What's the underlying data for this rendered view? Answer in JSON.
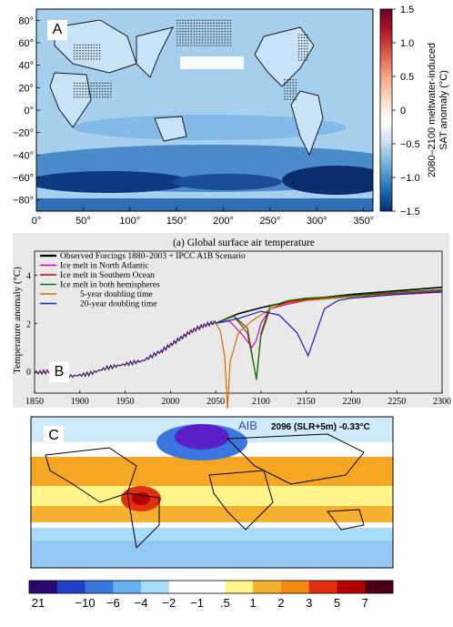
{
  "chart_data": [
    {
      "panel": "A",
      "type": "heatmap",
      "xticks": [
        "0°",
        "50°",
        "100°",
        "150°",
        "200°",
        "250°",
        "300°",
        "350°"
      ],
      "yticks": [
        "80°",
        "60°",
        "40°",
        "20°",
        "0°",
        "−20°",
        "−40°",
        "−60°",
        "−80°"
      ],
      "xlim": [
        0,
        360
      ],
      "ylim": [
        -90,
        90
      ],
      "colorbar": {
        "label_line1": "2080–2100 meltwater-induced",
        "label_line2": "SAT anomaly (°C)",
        "ticks": [
          "1.5",
          "1.0",
          "0.5",
          "0",
          "−0.5",
          "−1.0",
          "−1.5"
        ],
        "tick_values": [
          1.5,
          1.0,
          0.5,
          0,
          -0.5,
          -1.0,
          -1.5
        ],
        "range": [
          -1.5,
          1.5
        ],
        "colors": [
          "#08306b",
          "#2171b5",
          "#6baed6",
          "#c6dbef",
          "#ffffff",
          "#fddbc7",
          "#f4a582",
          "#d6604d",
          "#b2182b",
          "#67001f"
        ]
      },
      "colors": {
        "ocean_base": "#a6cfee",
        "southern_band": "#2b67b0",
        "deep_band": "#0b2f6e",
        "land_outline": "#1a1a1a"
      }
    },
    {
      "panel": "B",
      "type": "line",
      "title": "(a) Global surface air temperature",
      "ylabel": "Temperature anomaly (°C)",
      "xlim": [
        1850,
        2300
      ],
      "ylim": [
        -0.9,
        5
      ],
      "xticks": [
        1850,
        1900,
        1950,
        2000,
        2050,
        2100,
        2150,
        2200,
        2250,
        2300
      ],
      "yticks": [
        0,
        2,
        4
      ],
      "series": [
        {
          "name": "Observed Forcings 1880–2003 + IPCC A1B Scenario",
          "color": "#000000",
          "x": [
            2050,
            2075,
            2100,
            2125,
            2150,
            2175,
            2200,
            2250,
            2300
          ],
          "y": [
            2.0,
            2.4,
            2.65,
            2.85,
            3.0,
            3.1,
            3.2,
            3.35,
            3.5
          ]
        },
        {
          "name": "Ice melt in North Atlantic",
          "color": "#d000d0",
          "x": [
            2050,
            2065,
            2080,
            2090,
            2095,
            2100,
            2110,
            2130,
            2150,
            2200,
            2250,
            2300
          ],
          "y": [
            2.0,
            2.1,
            1.5,
            1.0,
            1.3,
            2.0,
            2.6,
            2.8,
            2.95,
            3.1,
            3.2,
            3.3
          ]
        },
        {
          "name": "Ice melt in Southern Ocean",
          "color": "#d00000",
          "x": [
            2050,
            2070,
            2085,
            2095,
            2100,
            2110,
            2130,
            2150,
            2200,
            2250,
            2300
          ],
          "y": [
            2.0,
            2.3,
            1.8,
            -0.35,
            1.5,
            2.6,
            2.9,
            3.0,
            3.15,
            3.25,
            3.35
          ]
        },
        {
          "name": "Ice melt in both hemispheres",
          "color": "#008000",
          "x": [
            2050,
            2070,
            2085,
            2095,
            2100,
            2110,
            2130,
            2150,
            2200,
            2250,
            2300
          ],
          "y": [
            2.0,
            2.3,
            1.6,
            -0.3,
            1.6,
            2.7,
            2.95,
            3.05,
            3.15,
            3.3,
            3.4
          ]
        },
        {
          "name": "5-year doubling time",
          "color": "#d07000",
          "x": [
            2050,
            2055,
            2060,
            2063,
            2066,
            2075,
            2090,
            2110,
            2130,
            2150,
            2200,
            2250,
            2300
          ],
          "y": [
            2.0,
            1.7,
            0.6,
            -1.55,
            0.4,
            1.6,
            2.1,
            2.6,
            2.85,
            2.95,
            3.1,
            3.2,
            3.3
          ]
        },
        {
          "name": "20-year doubling time",
          "color": "#2020c0",
          "x": [
            2050,
            2075,
            2100,
            2120,
            2140,
            2152,
            2160,
            2170,
            2185,
            2200,
            2250,
            2300
          ],
          "y": [
            2.0,
            2.2,
            2.5,
            2.35,
            1.6,
            0.65,
            1.5,
            2.6,
            2.95,
            3.05,
            3.2,
            3.3
          ]
        }
      ],
      "observed_history": {
        "x": [
          1850,
          1870,
          1890,
          1910,
          1930,
          1950,
          1970,
          1990,
          2000,
          2010,
          2020,
          2030,
          2040,
          2050
        ],
        "y": [
          -0.05,
          0.0,
          -0.2,
          -0.1,
          0.15,
          0.3,
          0.45,
          0.85,
          1.1,
          1.35,
          1.6,
          1.8,
          1.95,
          2.05
        ]
      }
    },
    {
      "panel": "C",
      "type": "heatmap",
      "title_left": "AIB",
      "title_right": "2096 (SLR+5m) -0.33°C",
      "colorbar": {
        "ticks": [
          "21",
          "−10",
          "−6",
          "−4",
          "−2",
          "−1",
          ".5",
          "1",
          "2",
          "3",
          "5",
          "7"
        ],
        "colors": [
          "#2a0a70",
          "#2040c8",
          "#3a78e0",
          "#66b0ef",
          "#a8dcf6",
          "#ffffff",
          "#ffffff",
          "#fff58a",
          "#f5b030",
          "#f58a10",
          "#e03010",
          "#b00000",
          "#4a0010"
        ]
      }
    }
  ],
  "labels": {
    "a": "A",
    "b": "B",
    "c": "C"
  }
}
